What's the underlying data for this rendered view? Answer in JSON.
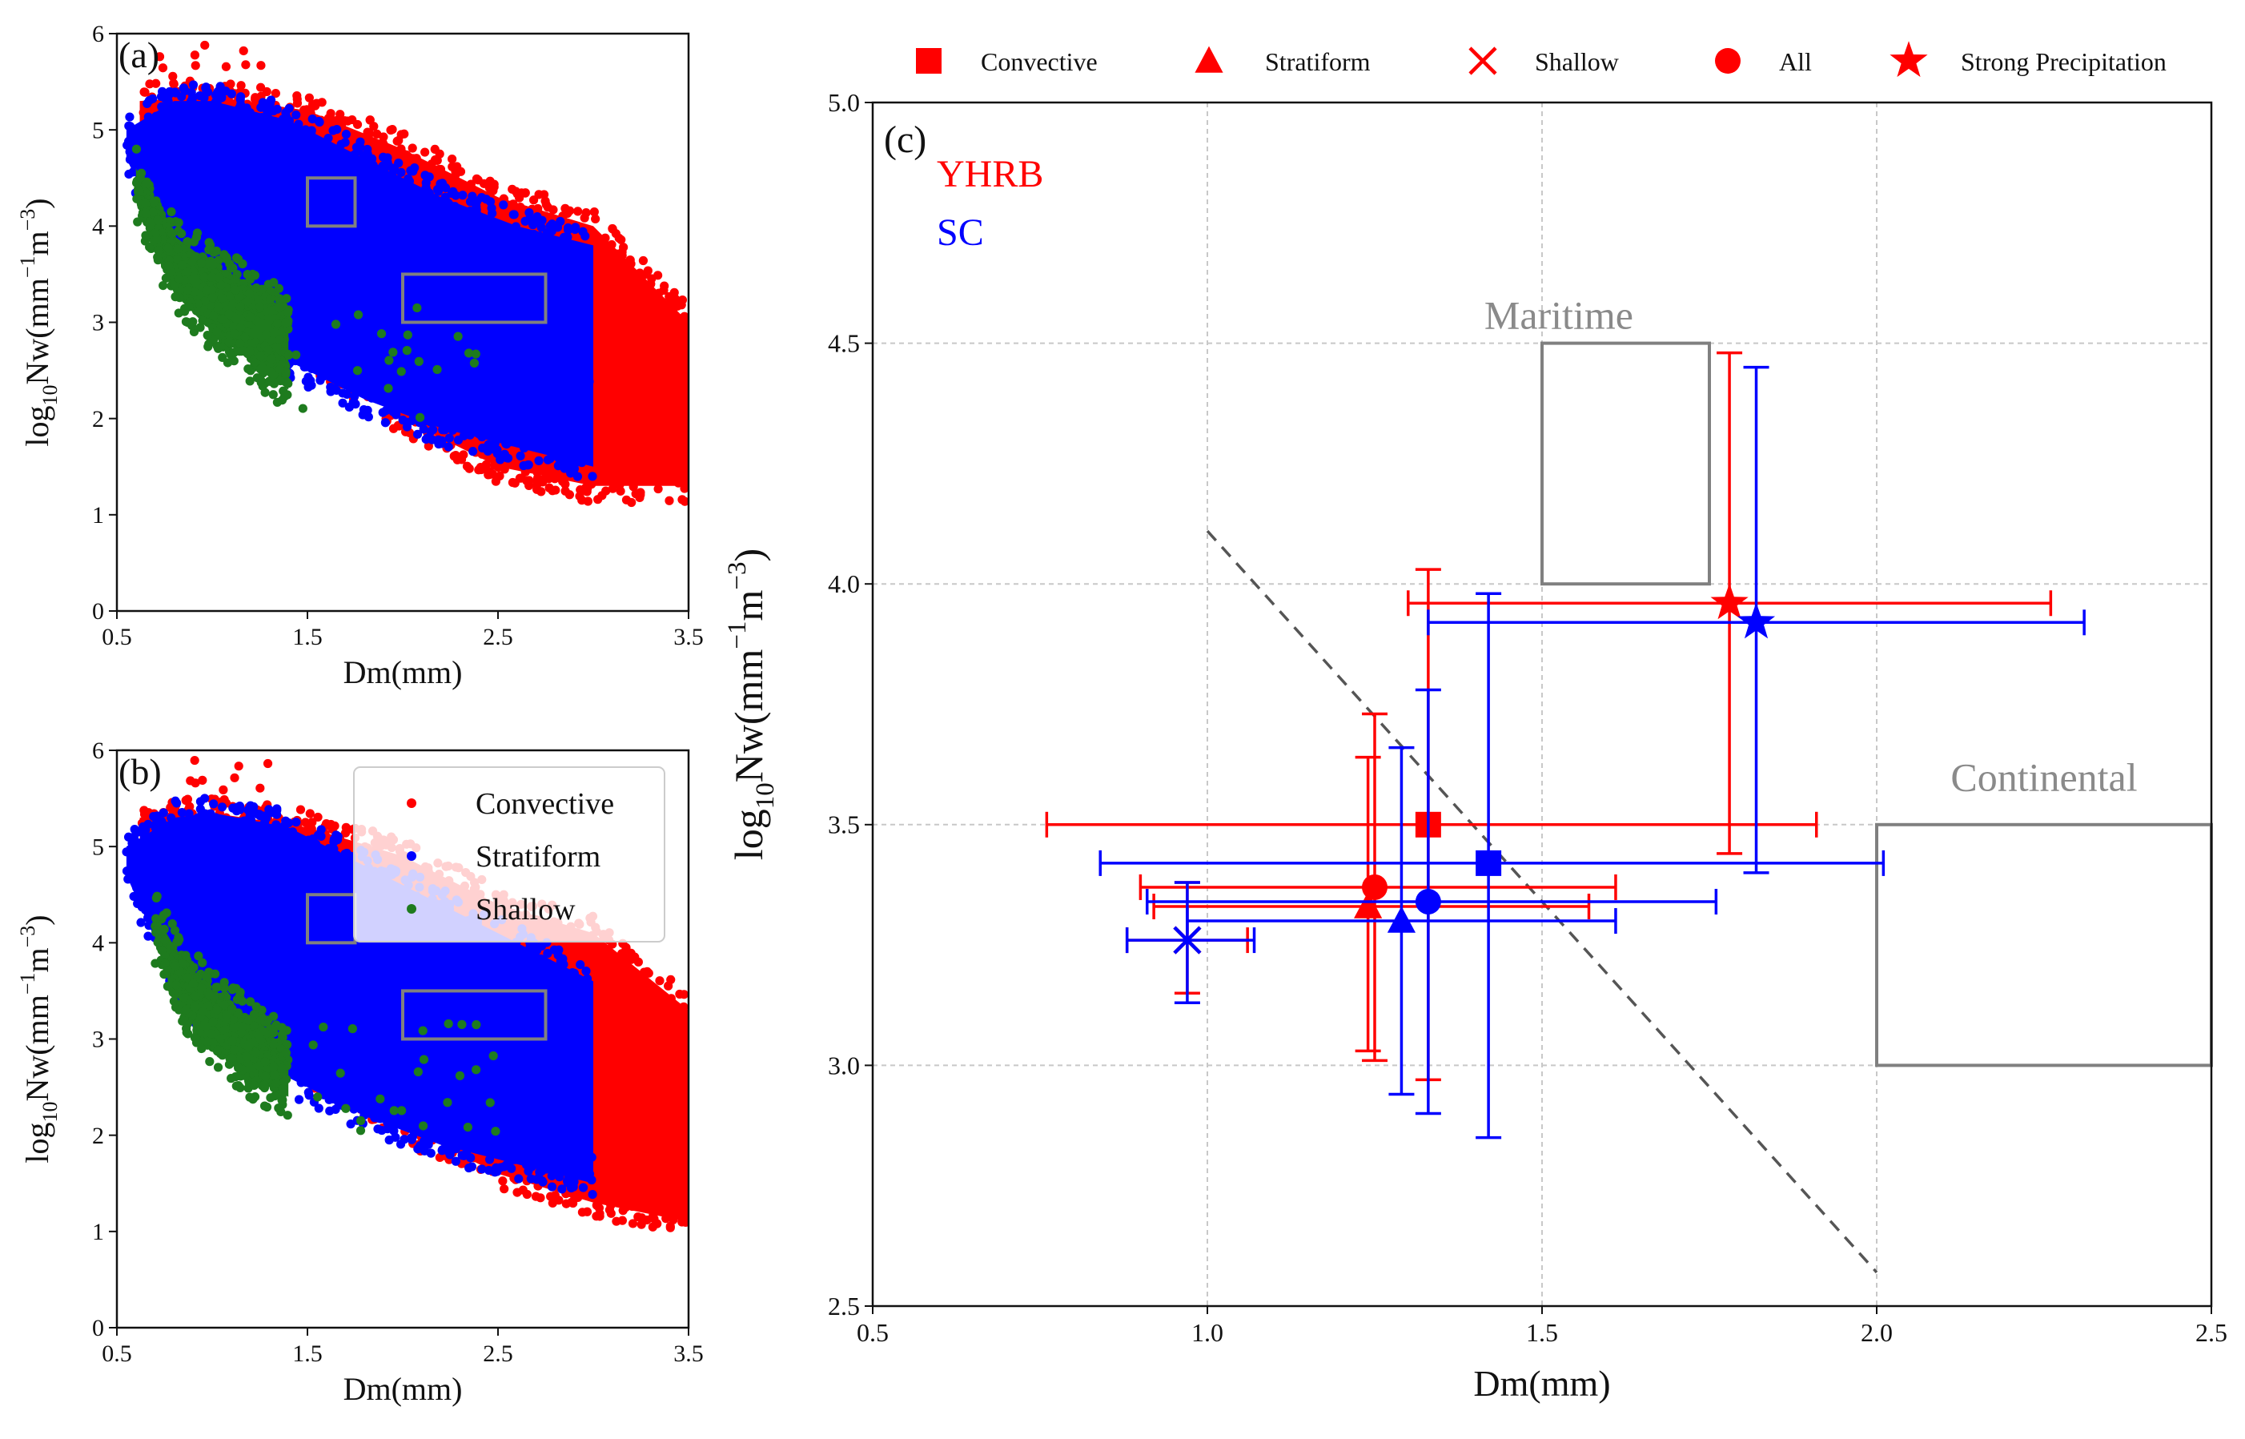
{
  "figure": {
    "colors": {
      "yhrb": "#ff0000",
      "sc": "#0000ff",
      "convective": "#ff0000",
      "stratiform": "#0000ff",
      "shallow": "#1e7b1e",
      "box": "#808080",
      "grid": "#c8c8c8"
    }
  },
  "chart_data": [
    {
      "id": "a",
      "type": "scatter",
      "panel_label": "(a)",
      "xlabel": "Dm(mm)",
      "ylabel": "log10Nw(mm−1m−3)",
      "ylabel_parts": {
        "base": "log",
        "sub": "10",
        "mid": "Nw(mm",
        "sup1": "−1",
        "mid2": "m",
        "sup2": "−3",
        "end": ")"
      },
      "xlim": [
        0.5,
        3.5
      ],
      "ylim": [
        0,
        6
      ],
      "xticks": [
        0.5,
        1.5,
        2.5,
        3.5
      ],
      "xtick_labels": [
        "0.5",
        "1.5",
        "2.5",
        "3.5"
      ],
      "yticks": [
        0,
        1,
        2,
        3,
        4,
        5,
        6
      ],
      "ytick_labels": [
        "0",
        "1",
        "2",
        "3",
        "4",
        "5",
        "6"
      ],
      "series": [
        {
          "name": "Convective",
          "color": "#ff0000",
          "envelope": {
            "dm": [
              0.62,
              1.0,
              1.5,
              2.0,
              2.5,
              3.0,
              3.5
            ],
            "upper": [
              5.3,
              5.35,
              5.2,
              4.8,
              4.3,
              4.0,
              3.0
            ],
            "lower": [
              4.6,
              3.6,
              2.7,
              2.0,
              1.5,
              1.3,
              1.3
            ]
          }
        },
        {
          "name": "Stratiform",
          "color": "#0000ff",
          "envelope": {
            "dm": [
              0.55,
              0.8,
              1.0,
              1.4,
              1.8,
              2.2,
              2.6,
              3.0
            ],
            "upper": [
              5.0,
              5.3,
              5.3,
              5.1,
              4.7,
              4.3,
              4.0,
              3.8
            ],
            "lower": [
              4.7,
              3.7,
              3.1,
              2.6,
              2.2,
              1.9,
              1.7,
              1.5
            ]
          }
        },
        {
          "name": "Shallow",
          "color": "#1e7b1e",
          "envelope": {
            "dm": [
              0.6,
              0.8,
              1.0,
              1.2,
              1.4
            ],
            "upper": [
              4.6,
              3.9,
              3.6,
              3.4,
              3.1
            ],
            "lower": [
              4.3,
              3.3,
              2.9,
              2.6,
              2.3
            ]
          }
        }
      ],
      "boxes": [
        {
          "name": "maritime",
          "x": [
            1.5,
            1.75
          ],
          "y": [
            4.0,
            4.5
          ]
        },
        {
          "name": "continental",
          "x": [
            2.0,
            2.75
          ],
          "y": [
            3.0,
            3.5
          ]
        }
      ]
    },
    {
      "id": "b",
      "type": "scatter",
      "panel_label": "(b)",
      "xlabel": "Dm(mm)",
      "ylabel": "log10Nw(mm−1m−3)",
      "ylabel_parts": {
        "base": "log",
        "sub": "10",
        "mid": "Nw(mm",
        "sup1": "−1",
        "mid2": "m",
        "sup2": "−3",
        "end": ")"
      },
      "xlim": [
        0.5,
        3.5
      ],
      "ylim": [
        0,
        6
      ],
      "xticks": [
        0.5,
        1.5,
        2.5,
        3.5
      ],
      "xtick_labels": [
        "0.5",
        "1.5",
        "2.5",
        "3.5"
      ],
      "yticks": [
        0,
        1,
        2,
        3,
        4,
        5,
        6
      ],
      "ytick_labels": [
        "0",
        "1",
        "2",
        "3",
        "4",
        "5",
        "6"
      ],
      "legend": [
        "Convective",
        "Stratiform",
        "Shallow"
      ],
      "legend_loc": "upper right",
      "series": [
        {
          "name": "Convective",
          "color": "#ff0000",
          "envelope": {
            "dm": [
              0.62,
              1.0,
              1.5,
              2.0,
              2.5,
              3.0,
              3.5
            ],
            "upper": [
              5.3,
              5.35,
              5.2,
              4.9,
              4.4,
              4.1,
              3.3
            ],
            "lower": [
              4.6,
              3.6,
              2.7,
              2.1,
              1.6,
              1.3,
              1.1
            ]
          }
        },
        {
          "name": "Stratiform",
          "color": "#0000ff",
          "envelope": {
            "dm": [
              0.55,
              0.8,
              1.0,
              1.4,
              1.8,
              2.2,
              2.6,
              3.0
            ],
            "upper": [
              5.0,
              5.3,
              5.35,
              5.2,
              4.8,
              4.4,
              4.0,
              3.6
            ],
            "lower": [
              4.7,
              3.6,
              3.1,
              2.6,
              2.2,
              1.9,
              1.7,
              1.5
            ]
          }
        },
        {
          "name": "Shallow",
          "color": "#1e7b1e",
          "envelope": {
            "dm": [
              0.7,
              0.85,
              1.0,
              1.2,
              1.4
            ],
            "upper": [
              4.3,
              3.8,
              3.5,
              3.2,
              2.9
            ],
            "lower": [
              4.0,
              3.3,
              2.9,
              2.6,
              2.4
            ]
          }
        }
      ],
      "boxes": [
        {
          "name": "maritime",
          "x": [
            1.5,
            1.75
          ],
          "y": [
            4.0,
            4.5
          ]
        },
        {
          "name": "continental",
          "x": [
            2.0,
            2.75
          ],
          "y": [
            3.0,
            3.5
          ]
        }
      ]
    },
    {
      "id": "c",
      "type": "scatter",
      "panel_label": "(c)",
      "xlabel": "Dm(mm)",
      "ylabel": "log10Nw(mm−1m−3)",
      "ylabel_parts": {
        "base": "log",
        "sub": "10",
        "mid": "Nw(mm",
        "sup1": "−1",
        "mid2": "m",
        "sup2": "−3",
        "end": ")"
      },
      "xlim": [
        0.5,
        2.5
      ],
      "ylim": [
        2.5,
        5.0
      ],
      "grid": true,
      "xticks": [
        0.5,
        1.0,
        1.5,
        2.0,
        2.5
      ],
      "xtick_labels": [
        "0.5",
        "1.0",
        "1.5",
        "2.0",
        "2.5"
      ],
      "yticks": [
        2.5,
        3.0,
        3.5,
        4.0,
        4.5,
        5.0
      ],
      "ytick_labels": [
        "2.5",
        "3.0",
        "3.5",
        "4.0",
        "4.5",
        "5.0"
      ],
      "legend": [
        "Convective",
        "Stratiform",
        "Shallow",
        "All",
        "Strong Precipitation"
      ],
      "legend_loc": "top, outside",
      "region_labels": {
        "YHRB": "YHRB",
        "SC": "SC",
        "maritime": "Maritime",
        "continental": "Continental"
      },
      "boxes": [
        {
          "name": "maritime",
          "x": [
            1.5,
            1.75
          ],
          "y": [
            4.0,
            4.5
          ]
        },
        {
          "name": "continental",
          "x": [
            2.0,
            2.5
          ],
          "y": [
            3.0,
            3.5
          ]
        }
      ],
      "dashed_line": {
        "x": [
          1.0,
          2.0
        ],
        "y": [
          4.11,
          2.57
        ]
      },
      "points": [
        {
          "region": "YHRB",
          "type": "Convective",
          "marker": "square",
          "dm": 1.33,
          "nw": 3.5,
          "dm_err": [
            0.76,
            1.91
          ],
          "nw_err": [
            2.97,
            4.03
          ]
        },
        {
          "region": "YHRB",
          "type": "Stratiform",
          "marker": "triangle",
          "dm": 1.24,
          "nw": 3.33,
          "dm_err": [
            0.92,
            1.57
          ],
          "nw_err": [
            3.03,
            3.64
          ]
        },
        {
          "region": "YHRB",
          "type": "Shallow",
          "marker": "x",
          "dm": 0.97,
          "nw": 3.26,
          "dm_err": [
            0.88,
            1.06
          ],
          "nw_err": [
            3.15,
            3.38
          ]
        },
        {
          "region": "YHRB",
          "type": "All",
          "marker": "circle",
          "dm": 1.25,
          "nw": 3.37,
          "dm_err": [
            0.9,
            1.61
          ],
          "nw_err": [
            3.01,
            3.73
          ]
        },
        {
          "region": "YHRB",
          "type": "Strong Precipitation",
          "marker": "star",
          "dm": 1.78,
          "nw": 3.96,
          "dm_err": [
            1.3,
            2.26
          ],
          "nw_err": [
            3.44,
            4.48
          ]
        },
        {
          "region": "SC",
          "type": "Convective",
          "marker": "square",
          "dm": 1.42,
          "nw": 3.42,
          "dm_err": [
            0.84,
            2.01
          ],
          "nw_err": [
            2.85,
            3.98
          ]
        },
        {
          "region": "SC",
          "type": "Stratiform",
          "marker": "triangle",
          "dm": 1.29,
          "nw": 3.3,
          "dm_err": [
            0.97,
            1.61
          ],
          "nw_err": [
            2.94,
            3.66
          ]
        },
        {
          "region": "SC",
          "type": "Shallow",
          "marker": "x",
          "dm": 0.97,
          "nw": 3.26,
          "dm_err": [
            0.88,
            1.07
          ],
          "nw_err": [
            3.13,
            3.38
          ]
        },
        {
          "region": "SC",
          "type": "All",
          "marker": "circle",
          "dm": 1.33,
          "nw": 3.34,
          "dm_err": [
            0.91,
            1.76
          ],
          "nw_err": [
            2.9,
            3.78
          ]
        },
        {
          "region": "SC",
          "type": "Strong Precipitation",
          "marker": "star",
          "dm": 1.82,
          "nw": 3.92,
          "dm_err": [
            1.33,
            2.31
          ],
          "nw_err": [
            3.4,
            4.45
          ]
        }
      ]
    }
  ]
}
